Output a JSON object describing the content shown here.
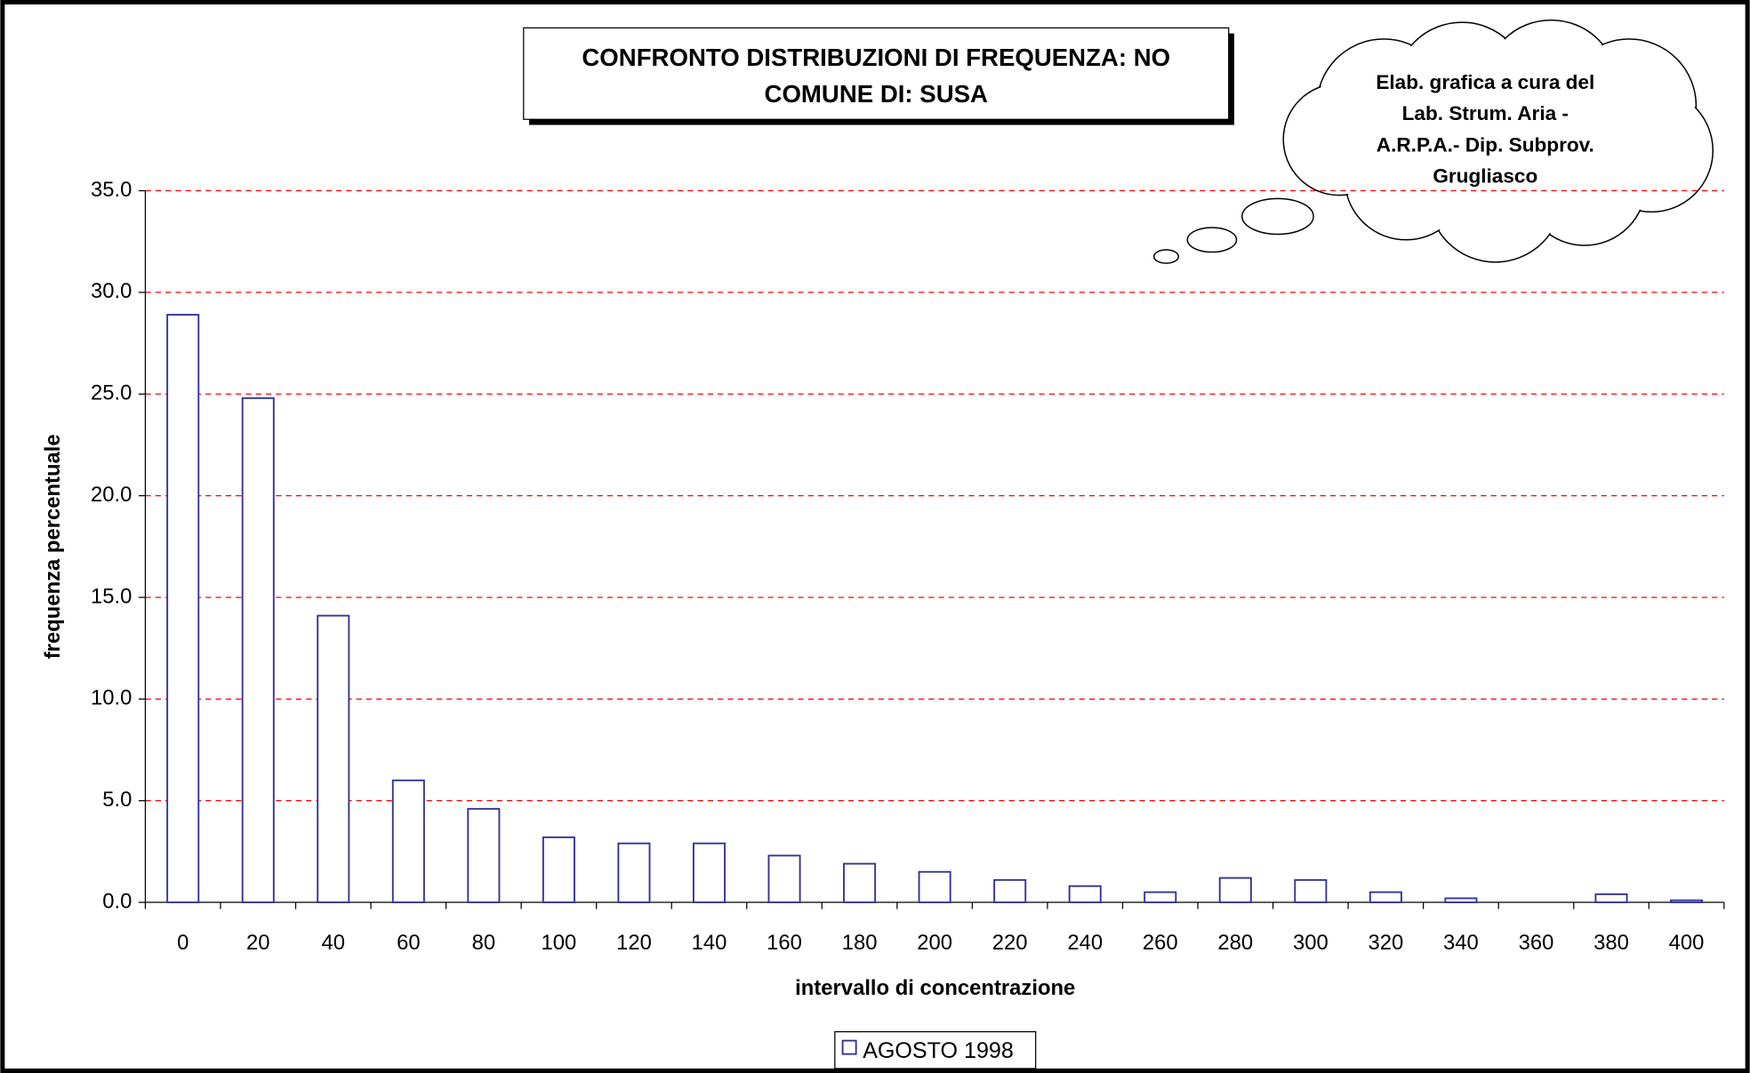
{
  "chart_data": {
    "type": "bar",
    "title": [
      "CONFRONTO DISTRIBUZIONI DI FREQUENZA: NO",
      "COMUNE DI: SUSA"
    ],
    "annotation": [
      "Elab. grafica a cura del",
      "Lab. Strum. Aria -",
      "A.R.P.A.- Dip. Subprov.",
      "Grugliasco"
    ],
    "x_label": "intervallo di concentrazione",
    "y_label": "frequenza percentuale",
    "categories": [
      "0",
      "20",
      "40",
      "60",
      "80",
      "100",
      "120",
      "140",
      "160",
      "180",
      "200",
      "220",
      "240",
      "260",
      "280",
      "300",
      "320",
      "340",
      "360",
      "380",
      "400"
    ],
    "series": [
      {
        "name": "AGOSTO 1998",
        "color": "#333399",
        "values": [
          28.9,
          24.8,
          14.1,
          6.0,
          4.6,
          3.2,
          2.9,
          2.9,
          2.3,
          1.9,
          1.5,
          1.1,
          0.8,
          0.5,
          1.2,
          1.1,
          0.5,
          0.2,
          0,
          0.4,
          0.1
        ]
      }
    ],
    "ylim": [
      0,
      35
    ],
    "yticks": [
      {
        "value": 0,
        "label": "0.0"
      },
      {
        "value": 5,
        "label": "5.0"
      },
      {
        "value": 10,
        "label": "10.0"
      },
      {
        "value": 15,
        "label": "15.0"
      },
      {
        "value": 20,
        "label": "20.0"
      },
      {
        "value": 25,
        "label": "25.0"
      },
      {
        "value": 30,
        "label": "30.0"
      },
      {
        "value": 35,
        "label": "35.0"
      }
    ],
    "grid": true,
    "grid_color": "#ff0000"
  }
}
